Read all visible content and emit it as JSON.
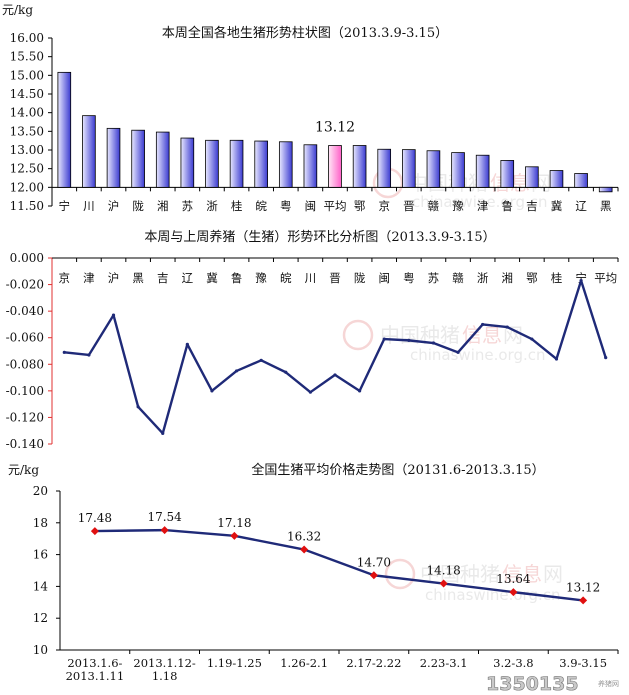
{
  "chart_data": [
    {
      "type": "bar",
      "title": "本周全国各地生猪形势柱状图（2013.3.9-3.15）",
      "ylabel": "元/kg",
      "ylim": [
        11.5,
        16.0
      ],
      "yticks": [
        "16.00",
        "15.50",
        "15.00",
        "14.50",
        "14.00",
        "13.50",
        "13.00",
        "12.50",
        "12.00",
        "11.50"
      ],
      "categories": [
        "宁",
        "川",
        "沪",
        "陇",
        "湘",
        "苏",
        "浙",
        "桂",
        "皖",
        "粤",
        "闽",
        "平均",
        "鄂",
        "京",
        "晋",
        "赣",
        "豫",
        "津",
        "鲁",
        "吉",
        "冀",
        "辽",
        "黑"
      ],
      "values": [
        15.08,
        13.92,
        13.58,
        13.53,
        13.48,
        13.32,
        13.26,
        13.26,
        13.24,
        13.22,
        13.14,
        13.12,
        13.12,
        13.02,
        13.01,
        12.98,
        12.93,
        12.86,
        12.72,
        12.55,
        12.45,
        12.37,
        11.88
      ],
      "highlight_index": 11,
      "annotation": "13.12",
      "colors": {
        "bar": "#3a3ad0",
        "bar_light": "#e8e8ff",
        "highlight": "#ff60c8",
        "highlight_light": "#ffe6f6"
      },
      "grid": false
    },
    {
      "type": "line",
      "title": "本周与上周养猪（生猪）形势环比分析图（2013.3.9-3.15）",
      "ylim": [
        -0.14,
        0.0
      ],
      "yticks": [
        "0.000",
        "-0.020",
        "-0.040",
        "-0.060",
        "-0.080",
        "-0.100",
        "-0.120",
        "-0.140"
      ],
      "categories": [
        "京",
        "津",
        "沪",
        "黑",
        "吉",
        "辽",
        "冀",
        "鲁",
        "豫",
        "皖",
        "川",
        "晋",
        "陇",
        "闽",
        "粤",
        "苏",
        "赣",
        "浙",
        "湘",
        "鄂",
        "桂",
        "宁",
        "平均"
      ],
      "values": [
        -0.071,
        -0.073,
        -0.043,
        -0.112,
        -0.132,
        -0.065,
        -0.1,
        -0.085,
        -0.077,
        -0.086,
        -0.101,
        -0.088,
        -0.1,
        -0.061,
        -0.062,
        -0.064,
        -0.071,
        -0.05,
        -0.052,
        -0.061,
        -0.076,
        -0.017,
        -0.075
      ],
      "colors": {
        "line": "#1f2a78",
        "axis": "#e03030"
      },
      "grid": false
    },
    {
      "type": "line",
      "title": "全国生猪平均价格走势图（20131.6-2013.3.15）",
      "ylabel": "元/kg",
      "ylim": [
        10,
        20
      ],
      "yticks": [
        "20",
        "18",
        "16",
        "14",
        "12",
        "10"
      ],
      "categories": [
        "2013.1.6-\n2013.1.11",
        "2013.1.12-\n1.18",
        "1.19-1.25",
        "1.26-2.1",
        "2.17-2.22",
        "2.23-3.1",
        "3.2-3.8",
        "3.9-3.15"
      ],
      "values": [
        17.48,
        17.54,
        17.18,
        16.32,
        14.7,
        14.18,
        13.64,
        13.12
      ],
      "data_labels": [
        "17.48",
        "17.54",
        "17.18",
        "16.32",
        "14.70",
        "14.18",
        "13.64",
        "13.12"
      ],
      "colors": {
        "line": "#1f2a78",
        "marker": "#e01010"
      },
      "grid": false
    }
  ],
  "watermark": {
    "cn_a": "中国种猪",
    "cn_b": "信息",
    "cn_c": "网",
    "en": "chinaswine.org.cn",
    "corner": "1350135",
    "corner_small": "养猪网"
  }
}
